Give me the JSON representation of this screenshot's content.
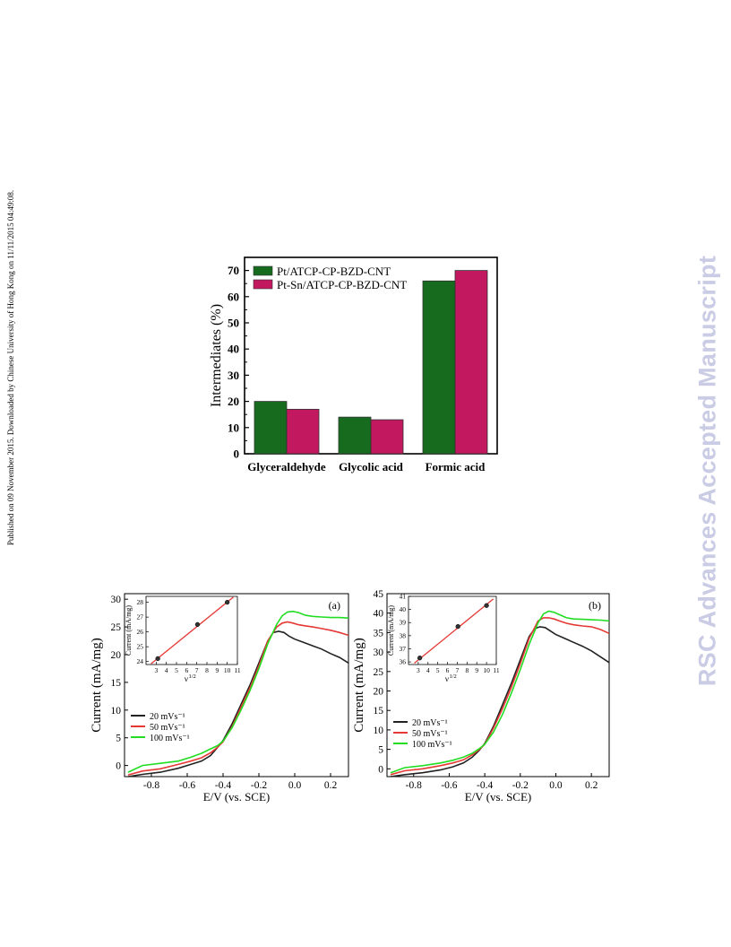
{
  "page": {
    "side_note": "Published on 09 November 2015. Downloaded by Chinese University of Hong Kong on 11/11/2015 04:49:08.",
    "watermark": "RSC Advances Accepted Manuscript"
  },
  "chart_data": [
    {
      "type": "bar",
      "categories": [
        "Glyceraldehyde",
        "Glycolic acid",
        "Formic acid"
      ],
      "series": [
        {
          "name": "Pt/ATCP-CP-BZD-CNT",
          "values": [
            20,
            14,
            66
          ],
          "color": "#176b1e"
        },
        {
          "name": "Pt-Sn/ATCP-CP-BZD-CNT",
          "values": [
            17,
            13,
            70
          ],
          "color": "#c2185f"
        }
      ],
      "xlabel": "",
      "ylabel": "Intermediates (%)",
      "ylim": [
        0,
        75
      ],
      "yticks": [
        0,
        10,
        20,
        30,
        40,
        50,
        60,
        70
      ],
      "legend": "top-left"
    },
    {
      "type": "line",
      "panel_label": "(a)",
      "xlabel": "E/V (vs. SCE)",
      "ylabel": "Current (mA/mg)",
      "xlim": [
        -0.95,
        0.3
      ],
      "ylim": [
        -2,
        31
      ],
      "xticks": [
        -0.8,
        -0.6,
        -0.4,
        -0.2,
        0.0,
        0.2
      ],
      "xtick_labels": [
        "-0.8",
        "-0.6",
        "-0.4",
        "-0.2",
        "0.0",
        "0.2"
      ],
      "yticks": [
        0,
        5,
        10,
        15,
        20,
        25,
        30
      ],
      "legend": "bottom-left",
      "series": [
        {
          "name": "20 mVs⁻¹",
          "color": "#222222",
          "x": [
            -0.93,
            -0.85,
            -0.75,
            -0.65,
            -0.58,
            -0.52,
            -0.47,
            -0.43,
            -0.4,
            -0.35,
            -0.3,
            -0.25,
            -0.2,
            -0.15,
            -0.12,
            -0.09,
            -0.06,
            -0.03,
            0.0,
            0.05,
            0.1,
            0.15,
            0.2,
            0.25,
            0.3
          ],
          "y": [
            -2,
            -1.6,
            -1.2,
            -0.5,
            0.2,
            0.8,
            1.8,
            3.3,
            4.5,
            7.5,
            11,
            14.5,
            18.5,
            22.5,
            24,
            24.2,
            24,
            23.3,
            22.8,
            22.2,
            21.6,
            21.0,
            20.2,
            19.5,
            18.5
          ]
        },
        {
          "name": "50 mVs⁻¹",
          "color": "#e53935",
          "x": [
            -0.93,
            -0.85,
            -0.75,
            -0.65,
            -0.58,
            -0.52,
            -0.47,
            -0.43,
            -0.4,
            -0.35,
            -0.3,
            -0.25,
            -0.2,
            -0.15,
            -0.1,
            -0.07,
            -0.04,
            -0.01,
            0.02,
            0.06,
            0.1,
            0.15,
            0.2,
            0.25,
            0.3
          ],
          "y": [
            -1.7,
            -1.0,
            -0.6,
            0.2,
            0.8,
            1.4,
            2.3,
            3.3,
            4.3,
            7.0,
            10.5,
            14.0,
            18.0,
            22.5,
            25.0,
            25.7,
            25.9,
            25.7,
            25.4,
            25.2,
            25.0,
            24.7,
            24.4,
            24.0,
            23.5
          ]
        },
        {
          "name": "100 mVs⁻¹",
          "color": "#22dd22",
          "x": [
            -0.93,
            -0.85,
            -0.75,
            -0.65,
            -0.58,
            -0.52,
            -0.47,
            -0.43,
            -0.4,
            -0.35,
            -0.3,
            -0.25,
            -0.2,
            -0.15,
            -0.1,
            -0.07,
            -0.04,
            -0.01,
            0.02,
            0.06,
            0.1,
            0.15,
            0.2,
            0.25,
            0.3
          ],
          "y": [
            -1.2,
            0.0,
            0.4,
            0.8,
            1.5,
            2.2,
            3.0,
            3.6,
            4.4,
            6.8,
            10.0,
            13.5,
            17.5,
            22.0,
            25.5,
            27.0,
            27.7,
            27.8,
            27.6,
            27.1,
            26.9,
            26.8,
            26.7,
            26.7,
            26.6
          ]
        }
      ],
      "inset": {
        "type": "scatter",
        "xlabel": "ν",
        "xlabel_superscript": "1/2",
        "ylabel": "Current (mA/mg)",
        "xlim": [
          2,
          11
        ],
        "ylim": [
          23.8,
          28.4
        ],
        "xticks": [
          3,
          4,
          5,
          6,
          7,
          8,
          9,
          10,
          11
        ],
        "yticks": [
          24,
          25,
          26,
          27,
          28
        ],
        "points": {
          "x": [
            3.16,
            7.07,
            10.0
          ],
          "y": [
            24.2,
            26.5,
            28.0
          ]
        },
        "fit_line": {
          "x": [
            2.5,
            10.6
          ],
          "y": [
            23.85,
            28.35
          ],
          "color": "#e53935"
        }
      }
    },
    {
      "type": "line",
      "panel_label": "(b)",
      "xlabel": "E/V (vs. SCE)",
      "ylabel": "Current (mA/mg)",
      "xlim": [
        -0.95,
        0.3
      ],
      "ylim": [
        -2,
        45
      ],
      "xticks": [
        -0.8,
        -0.6,
        -0.4,
        -0.2,
        0.0,
        0.2
      ],
      "xtick_labels": [
        "-0.8",
        "-0.6",
        "-0.4",
        "-0.2",
        "0.0",
        "0.2"
      ],
      "yticks": [
        0,
        5,
        10,
        15,
        20,
        25,
        30,
        35,
        40,
        45
      ],
      "legend": "bottom-left",
      "series": [
        {
          "name": "20 mVs⁻¹",
          "color": "#222222",
          "x": [
            -0.93,
            -0.85,
            -0.75,
            -0.65,
            -0.58,
            -0.52,
            -0.47,
            -0.43,
            -0.4,
            -0.35,
            -0.3,
            -0.25,
            -0.2,
            -0.15,
            -0.12,
            -0.09,
            -0.06,
            -0.03,
            0.0,
            0.05,
            0.1,
            0.15,
            0.2,
            0.25,
            0.3
          ],
          "y": [
            -2,
            -1.5,
            -1.0,
            -0.3,
            0.5,
            1.5,
            3.0,
            4.8,
            6.5,
            11.0,
            16.5,
            22.0,
            28.0,
            34.0,
            36.0,
            36.5,
            36.3,
            35.4,
            34.5,
            33.5,
            32.5,
            31.5,
            30.3,
            28.8,
            27.3
          ]
        },
        {
          "name": "50 mVs⁻¹",
          "color": "#e53935",
          "x": [
            -0.93,
            -0.85,
            -0.75,
            -0.65,
            -0.58,
            -0.52,
            -0.47,
            -0.43,
            -0.4,
            -0.35,
            -0.3,
            -0.25,
            -0.2,
            -0.15,
            -0.1,
            -0.07,
            -0.04,
            -0.01,
            0.02,
            0.06,
            0.1,
            0.15,
            0.2,
            0.25,
            0.3
          ],
          "y": [
            -1.5,
            -0.5,
            0.0,
            0.8,
            1.5,
            2.3,
            3.6,
            5.0,
            6.3,
            10.5,
            15.5,
            21.0,
            27.0,
            33.5,
            38.0,
            38.8,
            38.8,
            38.5,
            38.0,
            37.4,
            37.0,
            36.7,
            36.5,
            35.8,
            34.8
          ]
        },
        {
          "name": "100 mVs⁻¹",
          "color": "#22dd22",
          "x": [
            -0.93,
            -0.85,
            -0.75,
            -0.65,
            -0.58,
            -0.52,
            -0.47,
            -0.43,
            -0.4,
            -0.35,
            -0.3,
            -0.25,
            -0.2,
            -0.15,
            -0.1,
            -0.07,
            -0.04,
            -0.01,
            0.02,
            0.06,
            0.1,
            0.15,
            0.2,
            0.25,
            0.3
          ],
          "y": [
            -1.0,
            0.3,
            0.8,
            1.5,
            2.2,
            3.0,
            4.0,
            5.2,
            6.3,
            9.5,
            14.0,
            19.5,
            25.5,
            32.0,
            37.5,
            39.8,
            40.5,
            40.2,
            39.6,
            38.8,
            38.5,
            38.4,
            38.3,
            38.2,
            38.0
          ]
        }
      ],
      "inset": {
        "type": "scatter",
        "xlabel": "ν",
        "xlabel_superscript": "1/2",
        "ylabel": "Current (mA/mg)",
        "xlim": [
          2,
          11
        ],
        "ylim": [
          35.8,
          41.0
        ],
        "xticks": [
          3,
          4,
          5,
          6,
          7,
          8,
          9,
          10,
          11
        ],
        "yticks": [
          36,
          37,
          38,
          39,
          40,
          41
        ],
        "points": {
          "x": [
            3.16,
            7.07,
            10.0
          ],
          "y": [
            36.3,
            38.7,
            40.3
          ]
        },
        "fit_line": {
          "x": [
            2.6,
            10.7
          ],
          "y": [
            35.9,
            40.8
          ],
          "color": "#e53935"
        }
      }
    }
  ]
}
